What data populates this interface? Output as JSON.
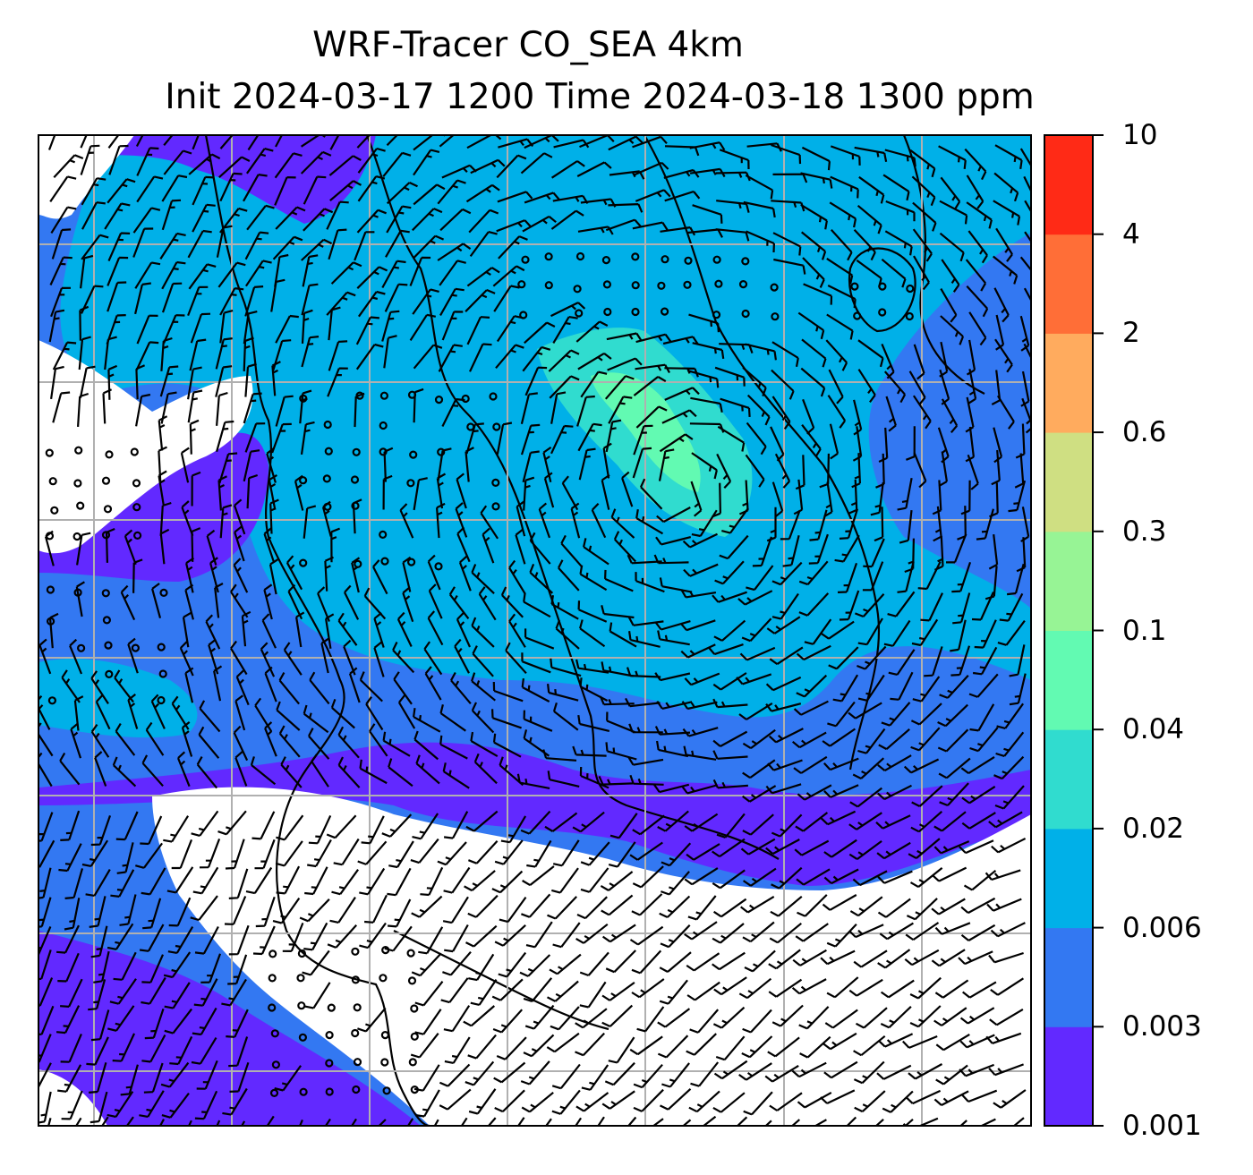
{
  "title": {
    "line1": "WRF-Tracer CO_SEA 4km",
    "line2": "Init 2024-03-17 1200 Time 2024-03-18 1300 ppm"
  },
  "colorbar": {
    "levels": [
      "0.001",
      "0.003",
      "0.006",
      "0.02",
      "0.04",
      "0.1",
      "0.3",
      "0.6",
      "2",
      "4",
      "10"
    ],
    "colors": [
      "#6229ff",
      "#3378f2",
      "#00b0e8",
      "#30dccf",
      "#62fab2",
      "#97f495",
      "#cfdf82",
      "#ffab5e",
      "#ff6e37",
      "#ff2a16"
    ]
  },
  "map": {
    "background": "#ffffff",
    "coastline_color": "#000000",
    "gridline_color": "#b0b0b0",
    "wind_symbol": "barbs",
    "calm_symbol": "circle"
  }
}
